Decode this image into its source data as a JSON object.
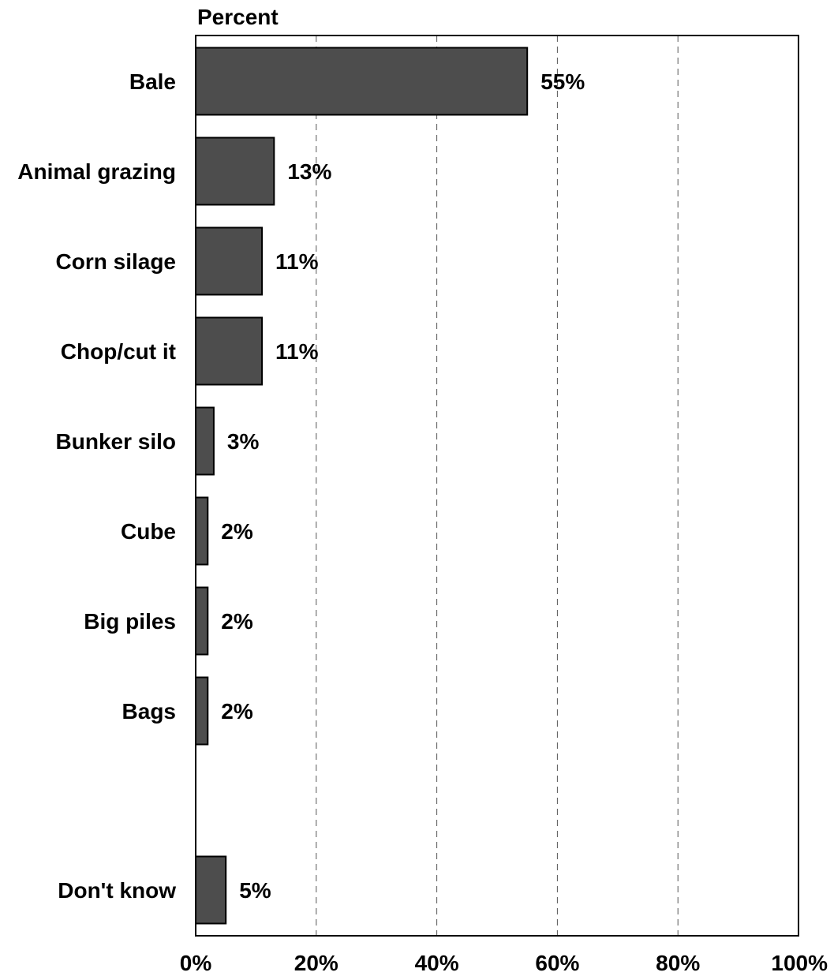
{
  "chart_data": {
    "type": "bar",
    "orientation": "horizontal",
    "ylabel": "Percent",
    "categories": [
      "Bale",
      "Animal grazing",
      "Corn silage",
      "Chop/cut it",
      "Bunker silo",
      "Cube",
      "Big piles",
      "Bags",
      "Don't know"
    ],
    "values": [
      55,
      13,
      11,
      11,
      3,
      2,
      2,
      2,
      5
    ],
    "data_labels": [
      "55%",
      "13%",
      "11%",
      "11%",
      "3%",
      "2%",
      "2%",
      "2%",
      "5%"
    ],
    "xlim": [
      0,
      100
    ],
    "ticks": [
      0,
      20,
      40,
      60,
      80,
      100
    ],
    "tick_labels": [
      "0%",
      "20%",
      "40%",
      "60%",
      "80%",
      "100%"
    ],
    "grid": "vertical dashed",
    "colors": {
      "bar": "#4d4d4d",
      "bar_outline": "#000000",
      "grid": "#555555"
    }
  }
}
